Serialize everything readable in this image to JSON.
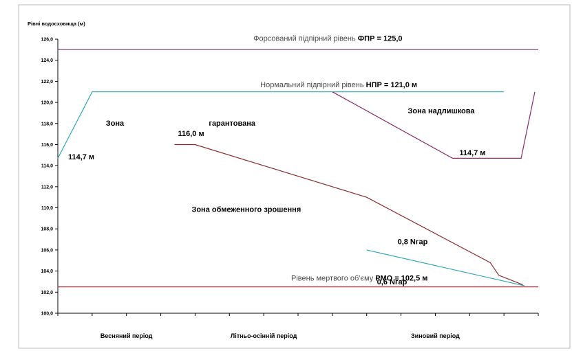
{
  "chart_data": {
    "type": "line",
    "ylabel": "Рівні водосховища  (м)",
    "ylim": [
      100,
      126
    ],
    "xlim": [
      0,
      14
    ],
    "yticks": [
      "100,0",
      "102,0",
      "104,0",
      "106,0",
      "108,0",
      "110,0",
      "112,0",
      "114,0",
      "116,0",
      "118,0",
      "120,0",
      "122,0",
      "124,0",
      "126,0"
    ],
    "periods": [
      "Весняний період",
      "Літньо-осінній період",
      "Зиновий період"
    ],
    "grid": false,
    "legend": "none",
    "series": [
      {
        "color": "#2aa8b4",
        "x": [
          0,
          1,
          13
        ],
        "y": [
          114.7,
          121.0,
          121.0
        ]
      },
      {
        "color": "#8b2a6a",
        "x": [
          8,
          11.5,
          13.5,
          13.9
        ],
        "y": [
          121.0,
          114.7,
          114.7,
          121.0
        ]
      },
      {
        "color": "#8b2a2a",
        "x": [
          3.4,
          4,
          9,
          12.6,
          12.85,
          13.55
        ],
        "y": [
          116.0,
          116.0,
          111.0,
          104.8,
          103.6,
          102.7
        ]
      },
      {
        "color": "#2aa8b4",
        "x": [
          9,
          13.6
        ],
        "y": [
          106.0,
          102.6
        ]
      },
      {
        "color": "#7a3a6e",
        "x": [
          0,
          14
        ],
        "y": [
          125.0,
          125.0
        ]
      },
      {
        "color": "#c0303a",
        "x": [
          0,
          14
        ],
        "y": [
          102.5,
          102.5
        ]
      }
    ],
    "annotations": [
      {
        "plain": "Форсований підпірний рівень ",
        "bold": "ФПР = 125,0",
        "x": 5.7,
        "y": 125.85
      },
      {
        "plain": "Нормальний підпірний рівень ",
        "bold": "НПР = 121,0 м",
        "x": 5.9,
        "y": 121.45
      },
      {
        "plain": "Рівень мертвого об'єму ",
        "bold": "РМО = 102,5 м",
        "x": 6.8,
        "y": 103.1
      },
      {
        "plain": "",
        "bold": "114,7 м",
        "x": 0.3,
        "y": 114.6
      },
      {
        "plain": "",
        "bold": "Зона",
        "x": 1.4,
        "y": 117.8
      },
      {
        "plain": "",
        "bold": "гарантована",
        "x": 4.4,
        "y": 117.8
      },
      {
        "plain": "",
        "bold": "Зона надлишкова",
        "x": 10.2,
        "y": 118.95
      },
      {
        "plain": "",
        "bold": "116,0 м",
        "x": 3.5,
        "y": 116.8
      },
      {
        "plain": "",
        "bold": "114,7 м",
        "x": 11.7,
        "y": 115.0
      },
      {
        "plain": "",
        "bold": "Зона  обмеженного  зрошення",
        "x": 3.9,
        "y": 109.6
      },
      {
        "plain": "",
        "bold": "0,8 Nгар",
        "x": 9.9,
        "y": 106.55
      },
      {
        "plain": "",
        "bold": "0,6 Nгар",
        "x": 9.3,
        "y": 102.75
      }
    ]
  }
}
